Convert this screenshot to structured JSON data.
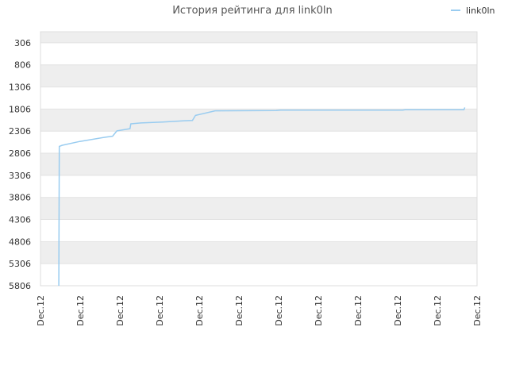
{
  "chart_data": {
    "type": "line",
    "title": "История рейтинга для link0ln",
    "xlabel": "",
    "ylabel": "",
    "y_inverted": true,
    "ylim": [
      5806,
      56
    ],
    "yticks": [
      306,
      806,
      1306,
      1806,
      2306,
      2806,
      3306,
      3806,
      4306,
      4806,
      5306,
      5806
    ],
    "xticks": [
      "Dec.12",
      "Dec.12",
      "Dec.12",
      "Dec.12",
      "Dec.12",
      "Dec.12",
      "Dec.12",
      "Dec.12",
      "Dec.12",
      "Dec.12",
      "Dec.12",
      "Dec.12"
    ],
    "grid": "horizontal-banded",
    "legend_position": "top-right",
    "series": [
      {
        "name": "link0ln",
        "color": "#99ccf0",
        "points": [
          [
            0.042,
            5806
          ],
          [
            0.043,
            2650
          ],
          [
            0.05,
            2625
          ],
          [
            0.09,
            2540
          ],
          [
            0.15,
            2440
          ],
          [
            0.165,
            2420
          ],
          [
            0.175,
            2300
          ],
          [
            0.205,
            2250
          ],
          [
            0.207,
            2140
          ],
          [
            0.23,
            2120
          ],
          [
            0.28,
            2100
          ],
          [
            0.33,
            2070
          ],
          [
            0.348,
            2065
          ],
          [
            0.355,
            1950
          ],
          [
            0.4,
            1845
          ],
          [
            0.54,
            1840
          ],
          [
            0.55,
            1830
          ],
          [
            0.83,
            1830
          ],
          [
            0.835,
            1820
          ],
          [
            0.97,
            1820
          ],
          [
            0.972,
            1770
          ]
        ]
      }
    ]
  }
}
